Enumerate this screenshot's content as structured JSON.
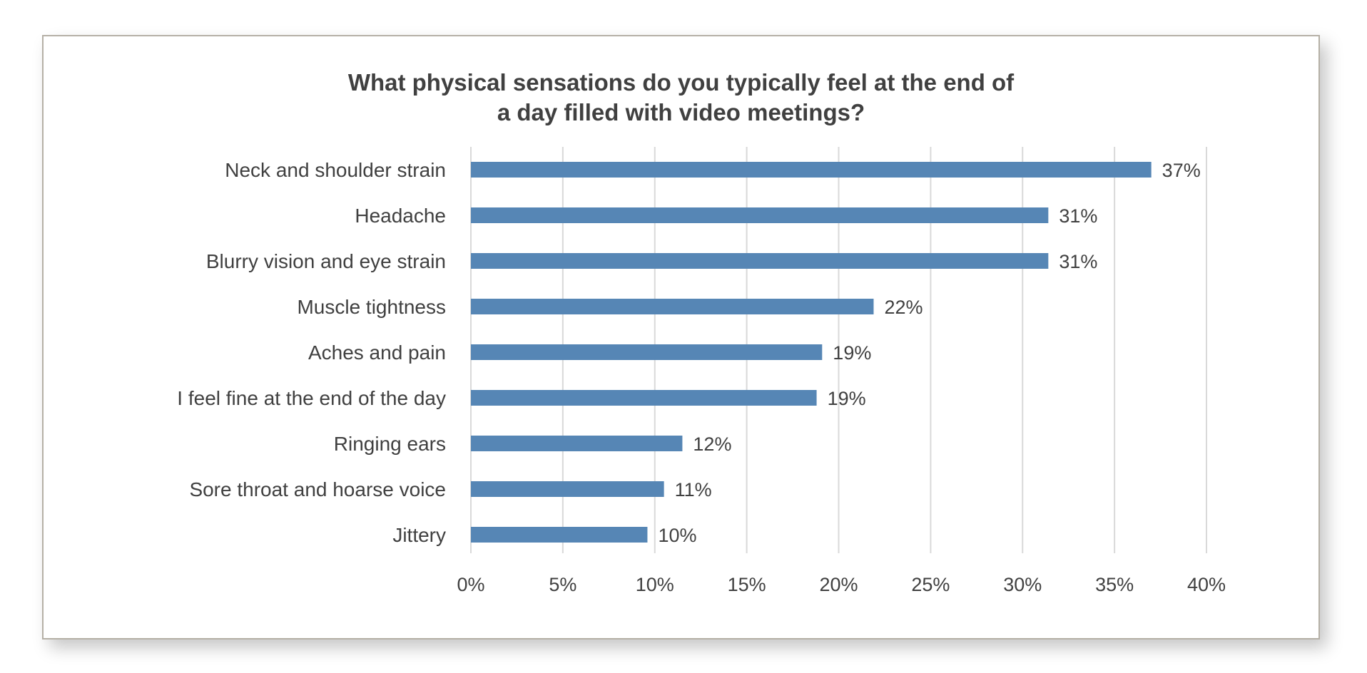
{
  "chart_data": {
    "type": "bar",
    "orientation": "horizontal",
    "title_lines": [
      "What physical sensations do you typically feel at the end of",
      "a day filled with video meetings?"
    ],
    "categories": [
      "Neck and shoulder strain",
      "Headache",
      "Blurry vision and eye strain",
      "Muscle tightness",
      "Aches and pain",
      "I feel fine at the end of the day",
      "Ringing ears",
      "Sore throat and hoarse voice",
      "Jittery"
    ],
    "values": [
      37,
      31.4,
      31.4,
      21.9,
      19.1,
      18.8,
      11.5,
      10.5,
      9.6
    ],
    "data_labels": [
      "37%",
      "31%",
      "31%",
      "22%",
      "19%",
      "19%",
      "12%",
      "11%",
      "10%"
    ],
    "xlim": [
      0,
      40
    ],
    "x_ticks": [
      0,
      5,
      10,
      15,
      20,
      25,
      30,
      35,
      40
    ],
    "x_tick_labels": [
      "0%",
      "5%",
      "10%",
      "15%",
      "20%",
      "25%",
      "30%",
      "35%",
      "40%"
    ],
    "grid": "vertical",
    "legend": "none",
    "bar_color": "#5686b5",
    "grid_color": "#d9d9d9",
    "text_color": "#404040"
  }
}
